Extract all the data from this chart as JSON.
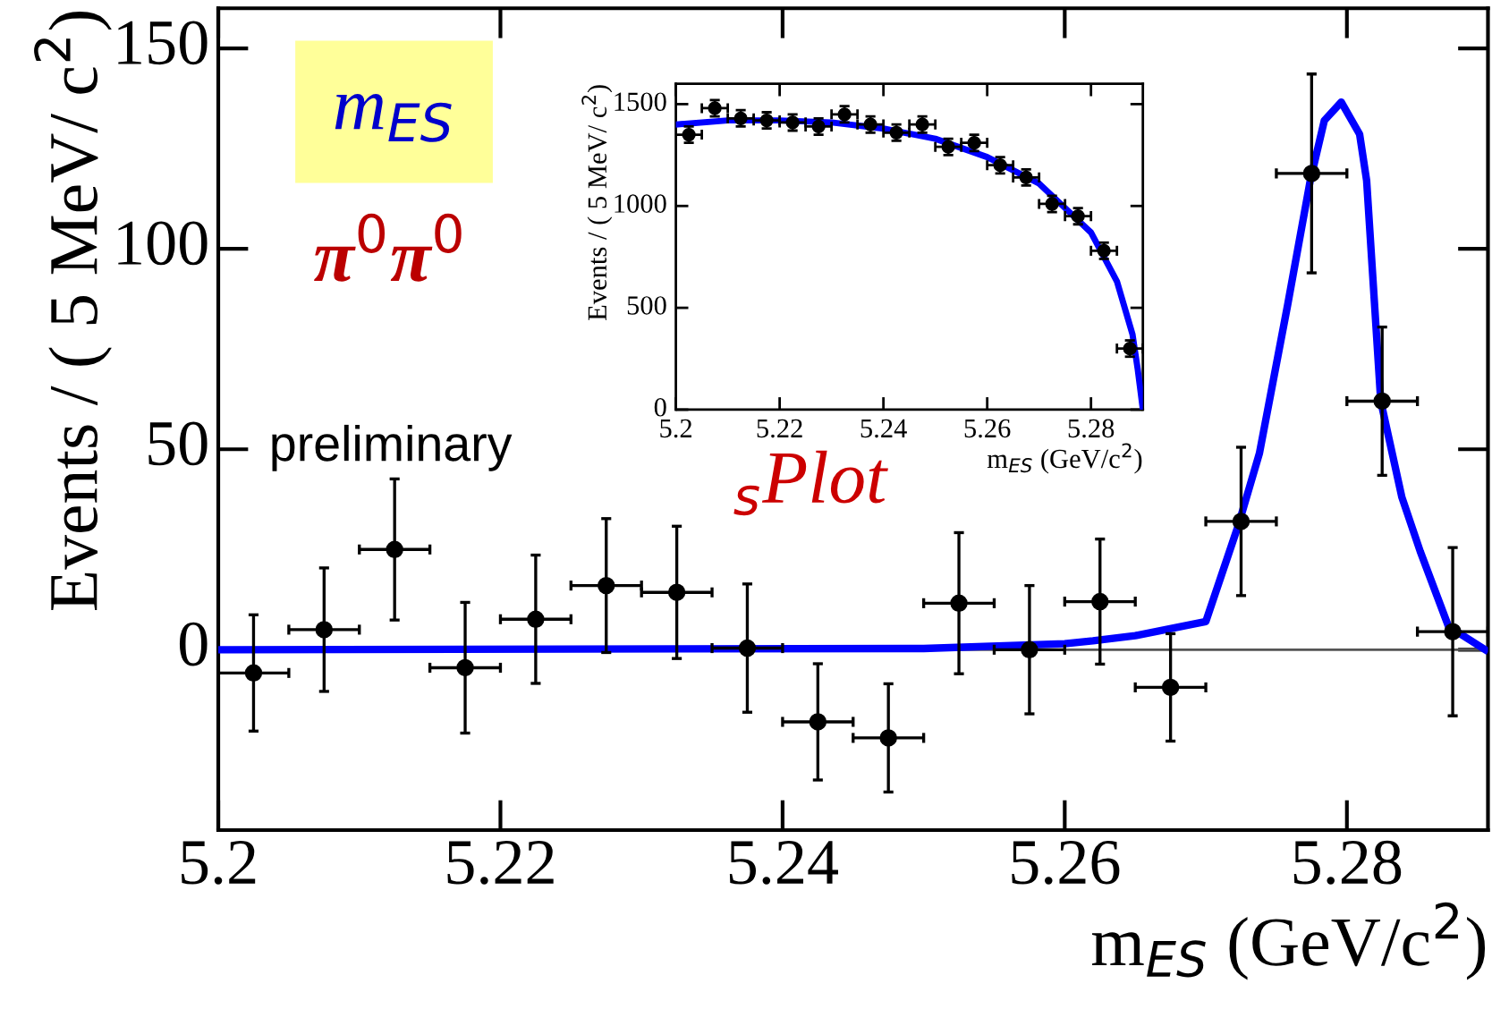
{
  "chart_data": [
    {
      "type": "scatter",
      "xlabel": "m$_{ES}$ (GeV/c$^{2}$)",
      "ylabel": "Events / ( 5 MeV/ c$^{2}$)",
      "annotations": [
        "m$_{ES}$",
        "π$^{0}$π$^{0}$",
        "preliminary",
        "$_{s}$Plot"
      ],
      "xlim": [
        5.2,
        5.29
      ],
      "ylim": [
        -45,
        160
      ],
      "xticks": [
        5.2,
        5.22,
        5.24,
        5.26,
        5.28
      ],
      "yticks": [
        0,
        50,
        100,
        150
      ],
      "marker": "circle",
      "ref_lines": [
        {
          "axis": "y",
          "value": 0,
          "color": "#555555"
        }
      ],
      "series": [
        {
          "color": "#000000",
          "x": [
            5.2025,
            5.2075,
            5.2125,
            5.2175,
            5.2225,
            5.2275,
            5.2325,
            5.2375,
            5.2425,
            5.2475,
            5.2525,
            5.2575,
            5.2625,
            5.2675,
            5.2725,
            5.2775,
            5.2825,
            5.2875
          ],
          "values": [
            -5.8,
            5,
            25,
            -4.5,
            7.6,
            16,
            14.3,
            0.4,
            -18,
            -22,
            11.6,
            0,
            12,
            -9.4,
            32,
            118.8,
            62,
            4.5
          ],
          "errors": [
            14.5,
            15.4,
            17.6,
            16.3,
            16,
            16.7,
            16.5,
            16,
            14.5,
            13.5,
            17.6,
            16,
            15.6,
            13.4,
            18.5,
            24.8,
            18.5,
            21
          ],
          "xerrors": [
            0.0025,
            0.0025,
            0.0025,
            0.0025,
            0.0025,
            0.0025,
            0.0025,
            0.0025,
            0.0025,
            0.0025,
            0.0025,
            0.0025,
            0.0025,
            0.0025,
            0.0025,
            0.0025,
            0.0025,
            0.0025
          ]
        },
        {
          "type": "line",
          "color": "#0000ff",
          "marker": "none",
          "x": [
            5.2,
            5.25,
            5.26,
            5.262,
            5.265,
            5.27,
            5.2723,
            5.2738,
            5.2758,
            5.2774,
            5.2784,
            5.2796,
            5.2809,
            5.2814,
            5.2824,
            5.2839,
            5.2852,
            5.2872,
            5.2898
          ],
          "values": [
            0,
            0.3,
            1.5,
            2.2,
            3.5,
            7,
            31,
            49,
            86,
            117,
            132,
            136.6,
            128.6,
            117,
            62,
            38,
            24.5,
            5.8,
            0
          ]
        }
      ]
    },
    {
      "type": "scatter",
      "xlabel": "m$_{ES}$ (GeV/c$^{2}$)",
      "ylabel": "Events / ( 5 MeV/ c$^{2}$)",
      "xlim": [
        5.2,
        5.29
      ],
      "ylim": [
        0,
        1600
      ],
      "xticks": [
        5.2,
        5.22,
        5.24,
        5.26,
        5.28
      ],
      "yticks": [
        0,
        500,
        1000,
        1500
      ],
      "marker": "circle",
      "series": [
        {
          "color": "#000000",
          "x": [
            5.2025,
            5.2075,
            5.2125,
            5.2175,
            5.2225,
            5.2275,
            5.2325,
            5.2375,
            5.2425,
            5.2475,
            5.2525,
            5.2575,
            5.2625,
            5.2675,
            5.2725,
            5.2775,
            5.2825,
            5.2875
          ],
          "values": [
            1350,
            1480,
            1430,
            1420,
            1410,
            1390,
            1450,
            1400,
            1360,
            1400,
            1290,
            1310,
            1200,
            1140,
            1010,
            950,
            780,
            300
          ],
          "errors": [
            40,
            40,
            40,
            40,
            40,
            40,
            40,
            40,
            40,
            40,
            40,
            40,
            40,
            40,
            40,
            40,
            40,
            40
          ],
          "xerrors": [
            0.0025,
            0.0025,
            0.0025,
            0.0025,
            0.0025,
            0.0025,
            0.0025,
            0.0025,
            0.0025,
            0.0025,
            0.0025,
            0.0025,
            0.0025,
            0.0025,
            0.0025,
            0.0025,
            0.0025,
            0.0025
          ]
        },
        {
          "type": "line",
          "color": "#0000ff",
          "marker": "none",
          "x": [
            5.2,
            5.21,
            5.22,
            5.23,
            5.24,
            5.25,
            5.26,
            5.27,
            5.28,
            5.285,
            5.288,
            5.289,
            5.29
          ],
          "values": [
            1400,
            1420,
            1420,
            1410,
            1380,
            1330,
            1240,
            1110,
            870,
            630,
            370,
            200,
            0
          ]
        }
      ]
    }
  ]
}
